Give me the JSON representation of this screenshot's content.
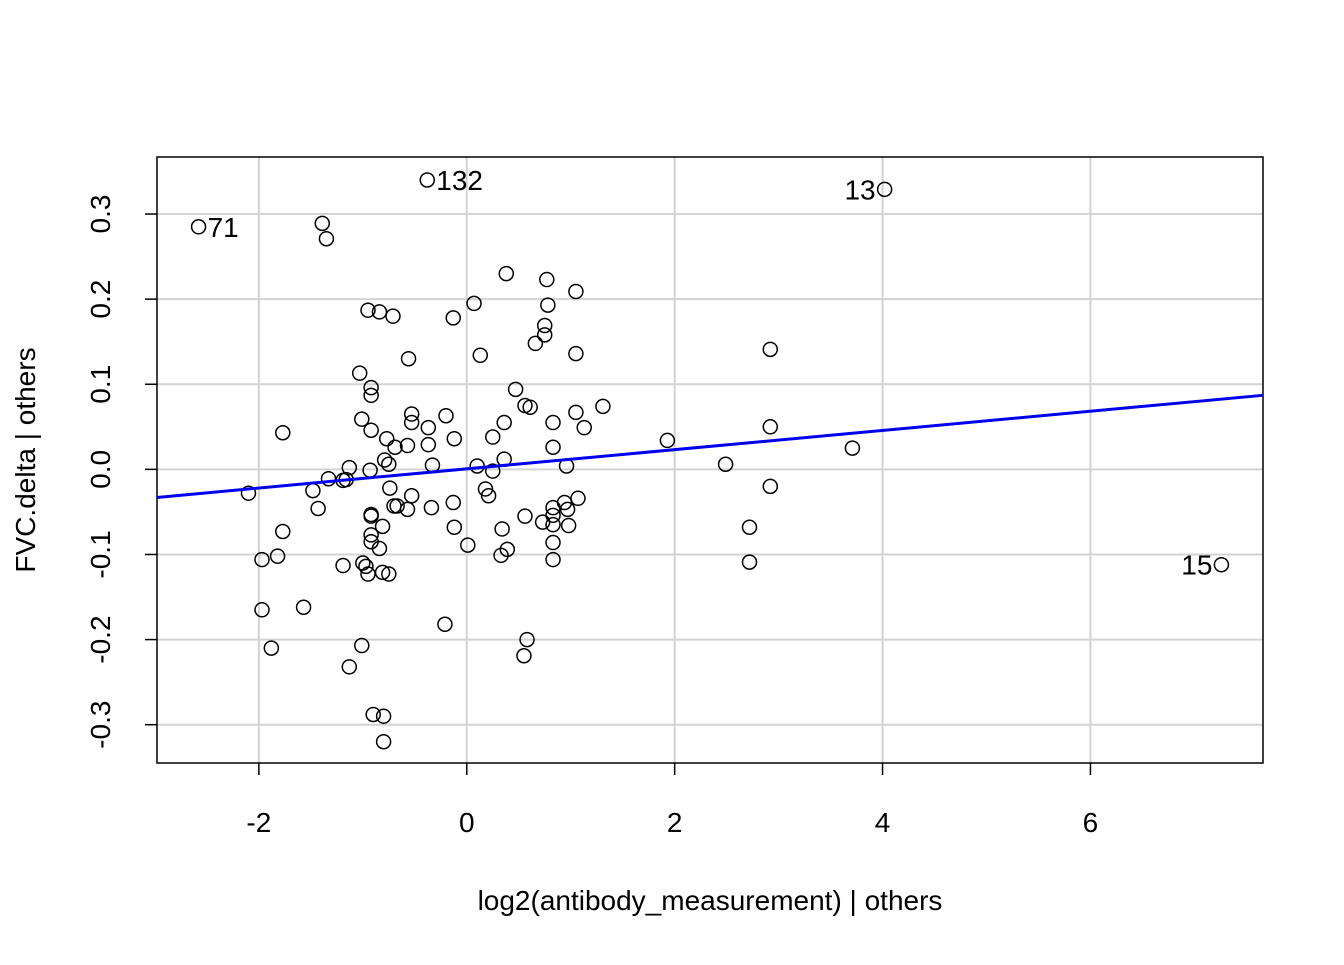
{
  "chart_data": {
    "type": "scatter",
    "x_label": "log2(antibody_measurement) | others",
    "y_label": "FVC.delta  | others",
    "xlim": [
      -2.98,
      7.66
    ],
    "ylim": [
      -0.345,
      0.367
    ],
    "xticks": [
      -2,
      0,
      2,
      4,
      6
    ],
    "yticks": [
      -0.3,
      -0.2,
      -0.1,
      {
        "value": 0,
        "label": "0.0"
      },
      0.1,
      0.2,
      0.3
    ],
    "grid": true,
    "point_color": "#000000",
    "x": [
      -1.39,
      -1.35,
      0.38,
      0.77,
      0.78,
      1.05,
      0.07,
      -0.95,
      -0.84,
      -0.71,
      -0.13,
      0.75,
      0.75,
      0.66,
      1.05,
      0.13,
      -0.56,
      2.92,
      -1.03,
      -0.92,
      -0.92,
      0.47,
      0.56,
      0.61,
      1.31,
      1.05,
      -0.53,
      -0.53,
      -0.2,
      -1.01,
      -0.37,
      0.83,
      0.36,
      1.13,
      2.92,
      -0.92,
      -1.77,
      -0.77,
      -0.69,
      -0.37,
      -0.57,
      -0.12,
      0.25,
      1.93,
      0.83,
      3.71,
      -0.79,
      -0.75,
      -0.33,
      0.36,
      0.1,
      0.96,
      2.49,
      -1.13,
      -0.93,
      0.25,
      -1.33,
      -1.19,
      -1.16,
      -2.1,
      -1.48,
      -0.74,
      0.18,
      0.21,
      2.92,
      -0.53,
      1.07,
      -1.43,
      -0.67,
      -0.7,
      -0.57,
      -0.34,
      -0.13,
      0.94,
      0.97,
      0.83,
      0.83,
      0.83,
      0.56,
      0.73,
      0.98,
      0.34,
      -0.12,
      -1.77,
      -0.92,
      -0.92,
      2.72,
      -0.81,
      -0.92,
      -0.92,
      -0.84,
      0.01,
      0.83,
      0.39,
      0.33,
      -1.97,
      -1.82,
      -1.19,
      -1.0,
      -0.97,
      -0.95,
      -0.81,
      -0.75,
      0.83,
      2.72,
      -1.97,
      -1.57,
      -0.21,
      0.58,
      0.55,
      -1.88,
      -1.01,
      -1.13,
      -0.9,
      -0.8,
      -0.8
    ],
    "y": [
      0.289,
      0.271,
      0.23,
      0.223,
      0.193,
      0.209,
      0.195,
      0.187,
      0.185,
      0.18,
      0.178,
      0.169,
      0.158,
      0.148,
      0.136,
      0.134,
      0.13,
      0.141,
      0.113,
      0.096,
      0.087,
      0.094,
      0.075,
      0.073,
      0.074,
      0.067,
      0.065,
      0.055,
      0.063,
      0.059,
      0.049,
      0.055,
      0.055,
      0.049,
      0.05,
      0.046,
      0.043,
      0.036,
      0.026,
      0.029,
      0.028,
      0.036,
      0.038,
      0.034,
      0.026,
      0.025,
      0.011,
      0.006,
      0.005,
      0.012,
      0.004,
      0.004,
      0.006,
      0.002,
      -0.001,
      -0.002,
      -0.011,
      -0.013,
      -0.012,
      -0.028,
      -0.025,
      -0.022,
      -0.023,
      -0.031,
      -0.02,
      -0.031,
      -0.034,
      -0.046,
      -0.043,
      -0.043,
      -0.047,
      -0.045,
      -0.039,
      -0.039,
      -0.047,
      -0.045,
      -0.054,
      -0.065,
      -0.055,
      -0.062,
      -0.066,
      -0.07,
      -0.068,
      -0.073,
      -0.053,
      -0.055,
      -0.068,
      -0.067,
      -0.077,
      -0.085,
      -0.093,
      -0.089,
      -0.086,
      -0.094,
      -0.101,
      -0.106,
      -0.102,
      -0.113,
      -0.11,
      -0.114,
      -0.123,
      -0.121,
      -0.123,
      -0.106,
      -0.109,
      -0.165,
      -0.162,
      -0.182,
      -0.2,
      -0.219,
      -0.21,
      -0.207,
      -0.232,
      -0.288,
      -0.29,
      -0.32
    ],
    "labeled_points": {
      "labels": [
        "71",
        "132",
        "13",
        "15"
      ],
      "x": [
        -2.58,
        -0.38,
        4.02,
        7.26
      ],
      "y": [
        0.285,
        0.34,
        0.329,
        -0.112
      ]
    },
    "fit_line": {
      "color": "#0000ee",
      "x": [
        -2.98,
        7.66
      ],
      "y": [
        -0.033,
        0.087
      ]
    }
  }
}
